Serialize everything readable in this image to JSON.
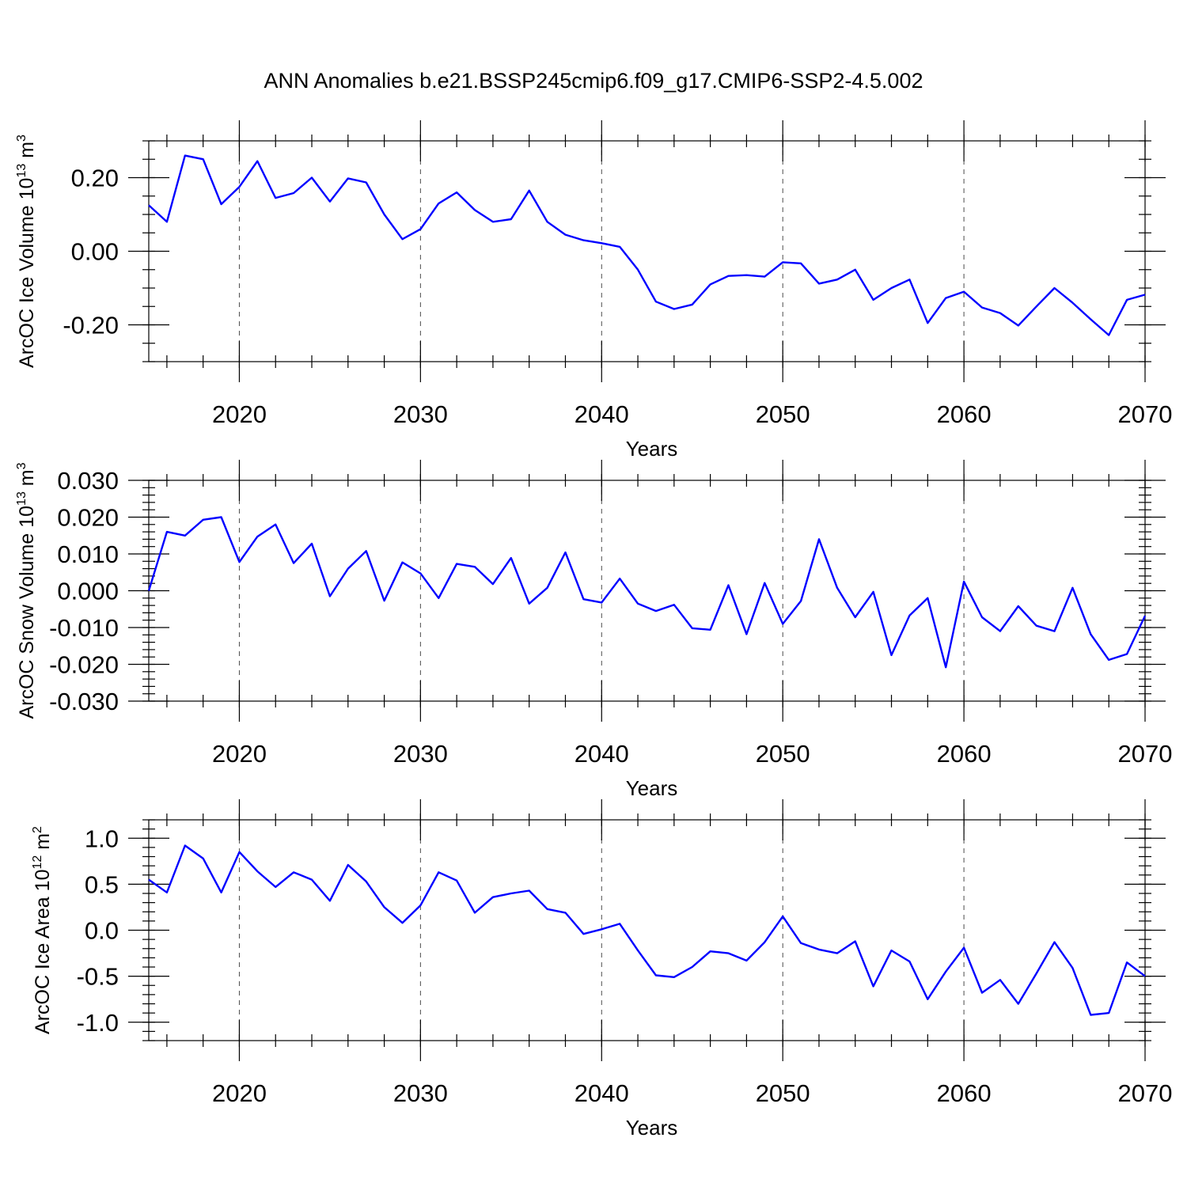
{
  "title": "ANN Anomalies b.e21.BSSP245cmip6.f09_g17.CMIP6-SSP2-4.5.002",
  "colors": {
    "line": "#0000ff",
    "axis": "#000000"
  },
  "chart_data": [
    {
      "type": "line",
      "ylabel": {
        "main": "ArcOC Ice Volume 10",
        "sup": "13",
        "unit": " m",
        "unit_sup": "3"
      },
      "xlabel": "Years",
      "xlim": [
        2015,
        2070
      ],
      "ylim": [
        -0.3,
        0.3
      ],
      "yticks": [
        -0.2,
        0.0,
        0.2
      ],
      "ytick_labels": [
        "-0.20",
        "0.00",
        "0.20"
      ],
      "yminor_step": 0.05,
      "xticks": [
        2020,
        2030,
        2040,
        2050,
        2060,
        2070
      ],
      "xtick_labels": [
        "2020",
        "2030",
        "2040",
        "2050",
        "2060",
        "2070"
      ],
      "grid": "vertical dashed at major x ticks",
      "series": [
        {
          "x": [
            2015,
            2016,
            2017,
            2018,
            2019,
            2020,
            2021,
            2022,
            2023,
            2024,
            2025,
            2026,
            2027,
            2028,
            2029,
            2030,
            2031,
            2032,
            2033,
            2034,
            2035,
            2036,
            2037,
            2038,
            2039,
            2040,
            2041,
            2042,
            2043,
            2044,
            2045,
            2046,
            2047,
            2048,
            2049,
            2050,
            2051,
            2052,
            2053,
            2054,
            2055,
            2056,
            2057,
            2058,
            2059,
            2060,
            2061,
            2062,
            2063,
            2064,
            2065,
            2066,
            2067,
            2068,
            2069,
            2070
          ],
          "values": [
            0.125,
            0.08,
            0.26,
            0.25,
            0.128,
            0.175,
            0.245,
            0.145,
            0.158,
            0.2,
            0.135,
            0.198,
            0.187,
            0.1,
            0.033,
            0.06,
            0.13,
            0.16,
            0.112,
            0.08,
            0.087,
            0.165,
            0.08,
            0.045,
            0.03,
            0.022,
            0.012,
            -0.05,
            -0.137,
            -0.157,
            -0.145,
            -0.09,
            -0.067,
            -0.065,
            -0.069,
            -0.03,
            -0.033,
            -0.088,
            -0.077,
            -0.05,
            -0.132,
            -0.1,
            -0.077,
            -0.195,
            -0.127,
            -0.11,
            -0.153,
            -0.168,
            -0.202,
            -0.15,
            -0.1,
            -0.14,
            -0.185,
            -0.228,
            -0.132,
            -0.118
          ]
        }
      ]
    },
    {
      "type": "line",
      "ylabel": {
        "main": "ArcOC Snow Volume 10",
        "sup": "13",
        "unit": " m",
        "unit_sup": "3"
      },
      "xlabel": "Years",
      "xlim": [
        2015,
        2070
      ],
      "ylim": [
        -0.03,
        0.03
      ],
      "yticks": [
        -0.03,
        -0.02,
        -0.01,
        0.0,
        0.01,
        0.02,
        0.03
      ],
      "ytick_labels": [
        "-0.030",
        "-0.020",
        "-0.010",
        "0.000",
        "0.010",
        "0.020",
        "0.030"
      ],
      "yminor_step": 0.002,
      "xticks": [
        2020,
        2030,
        2040,
        2050,
        2060,
        2070
      ],
      "xtick_labels": [
        "2020",
        "2030",
        "2040",
        "2050",
        "2060",
        "2070"
      ],
      "grid": "vertical dashed at major x ticks",
      "series": [
        {
          "x": [
            2015,
            2016,
            2017,
            2018,
            2019,
            2020,
            2021,
            2022,
            2023,
            2024,
            2025,
            2026,
            2027,
            2028,
            2029,
            2030,
            2031,
            2032,
            2033,
            2034,
            2035,
            2036,
            2037,
            2038,
            2039,
            2040,
            2041,
            2042,
            2043,
            2044,
            2045,
            2046,
            2047,
            2048,
            2049,
            2050,
            2051,
            2052,
            2053,
            2054,
            2055,
            2056,
            2057,
            2058,
            2059,
            2060,
            2061,
            2062,
            2063,
            2064,
            2065,
            2066,
            2067,
            2068,
            2069,
            2070
          ],
          "values": [
            0.0,
            0.016,
            0.015,
            0.0193,
            0.02,
            0.0078,
            0.0147,
            0.018,
            0.0075,
            0.0128,
            -0.0015,
            0.006,
            0.0108,
            -0.0027,
            0.0077,
            0.0047,
            -0.002,
            0.0073,
            0.0065,
            0.0018,
            0.0089,
            -0.0035,
            0.0008,
            0.0104,
            -0.0023,
            -0.0032,
            0.0033,
            -0.0035,
            -0.0055,
            -0.0038,
            -0.0102,
            -0.0106,
            0.0015,
            -0.0118,
            0.0021,
            -0.009,
            -0.0028,
            0.014,
            0.0008,
            -0.0072,
            -0.0003,
            -0.0175,
            -0.0067,
            -0.002,
            -0.0208,
            0.0025,
            -0.0072,
            -0.011,
            -0.0042,
            -0.0095,
            -0.011,
            0.0008,
            -0.0118,
            -0.0188,
            -0.0172,
            -0.0068
          ]
        }
      ]
    },
    {
      "type": "line",
      "ylabel": {
        "main": "ArcOC Ice Area 10",
        "sup": "12",
        "unit": " m",
        "unit_sup": "2"
      },
      "xlabel": "Years",
      "xlim": [
        2015,
        2070
      ],
      "ylim": [
        -1.2,
        1.2
      ],
      "yticks": [
        -1.0,
        -0.5,
        0.0,
        0.5,
        1.0
      ],
      "ytick_labels": [
        "-1.0",
        "-0.5",
        "0.0",
        "0.5",
        "1.0"
      ],
      "yminor_step": 0.1,
      "xticks": [
        2020,
        2030,
        2040,
        2050,
        2060,
        2070
      ],
      "xtick_labels": [
        "2020",
        "2030",
        "2040",
        "2050",
        "2060",
        "2070"
      ],
      "grid": "vertical dashed at major x ticks",
      "series": [
        {
          "x": [
            2015,
            2016,
            2017,
            2018,
            2019,
            2020,
            2021,
            2022,
            2023,
            2024,
            2025,
            2026,
            2027,
            2028,
            2029,
            2030,
            2031,
            2032,
            2033,
            2034,
            2035,
            2036,
            2037,
            2038,
            2039,
            2040,
            2041,
            2042,
            2043,
            2044,
            2045,
            2046,
            2047,
            2048,
            2049,
            2050,
            2051,
            2052,
            2053,
            2054,
            2055,
            2056,
            2057,
            2058,
            2059,
            2060,
            2061,
            2062,
            2063,
            2064,
            2065,
            2066,
            2067,
            2068,
            2069,
            2070
          ],
          "values": [
            0.55,
            0.41,
            0.92,
            0.78,
            0.41,
            0.85,
            0.64,
            0.47,
            0.63,
            0.55,
            0.32,
            0.71,
            0.53,
            0.25,
            0.08,
            0.27,
            0.63,
            0.54,
            0.19,
            0.36,
            0.4,
            0.43,
            0.23,
            0.19,
            -0.04,
            0.01,
            0.07,
            -0.22,
            -0.49,
            -0.51,
            -0.4,
            -0.23,
            -0.25,
            -0.33,
            -0.13,
            0.15,
            -0.14,
            -0.21,
            -0.25,
            -0.12,
            -0.61,
            -0.22,
            -0.34,
            -0.75,
            -0.45,
            -0.19,
            -0.68,
            -0.54,
            -0.8,
            -0.47,
            -0.13,
            -0.41,
            -0.92,
            -0.9,
            -0.35,
            -0.5
          ]
        }
      ]
    }
  ]
}
